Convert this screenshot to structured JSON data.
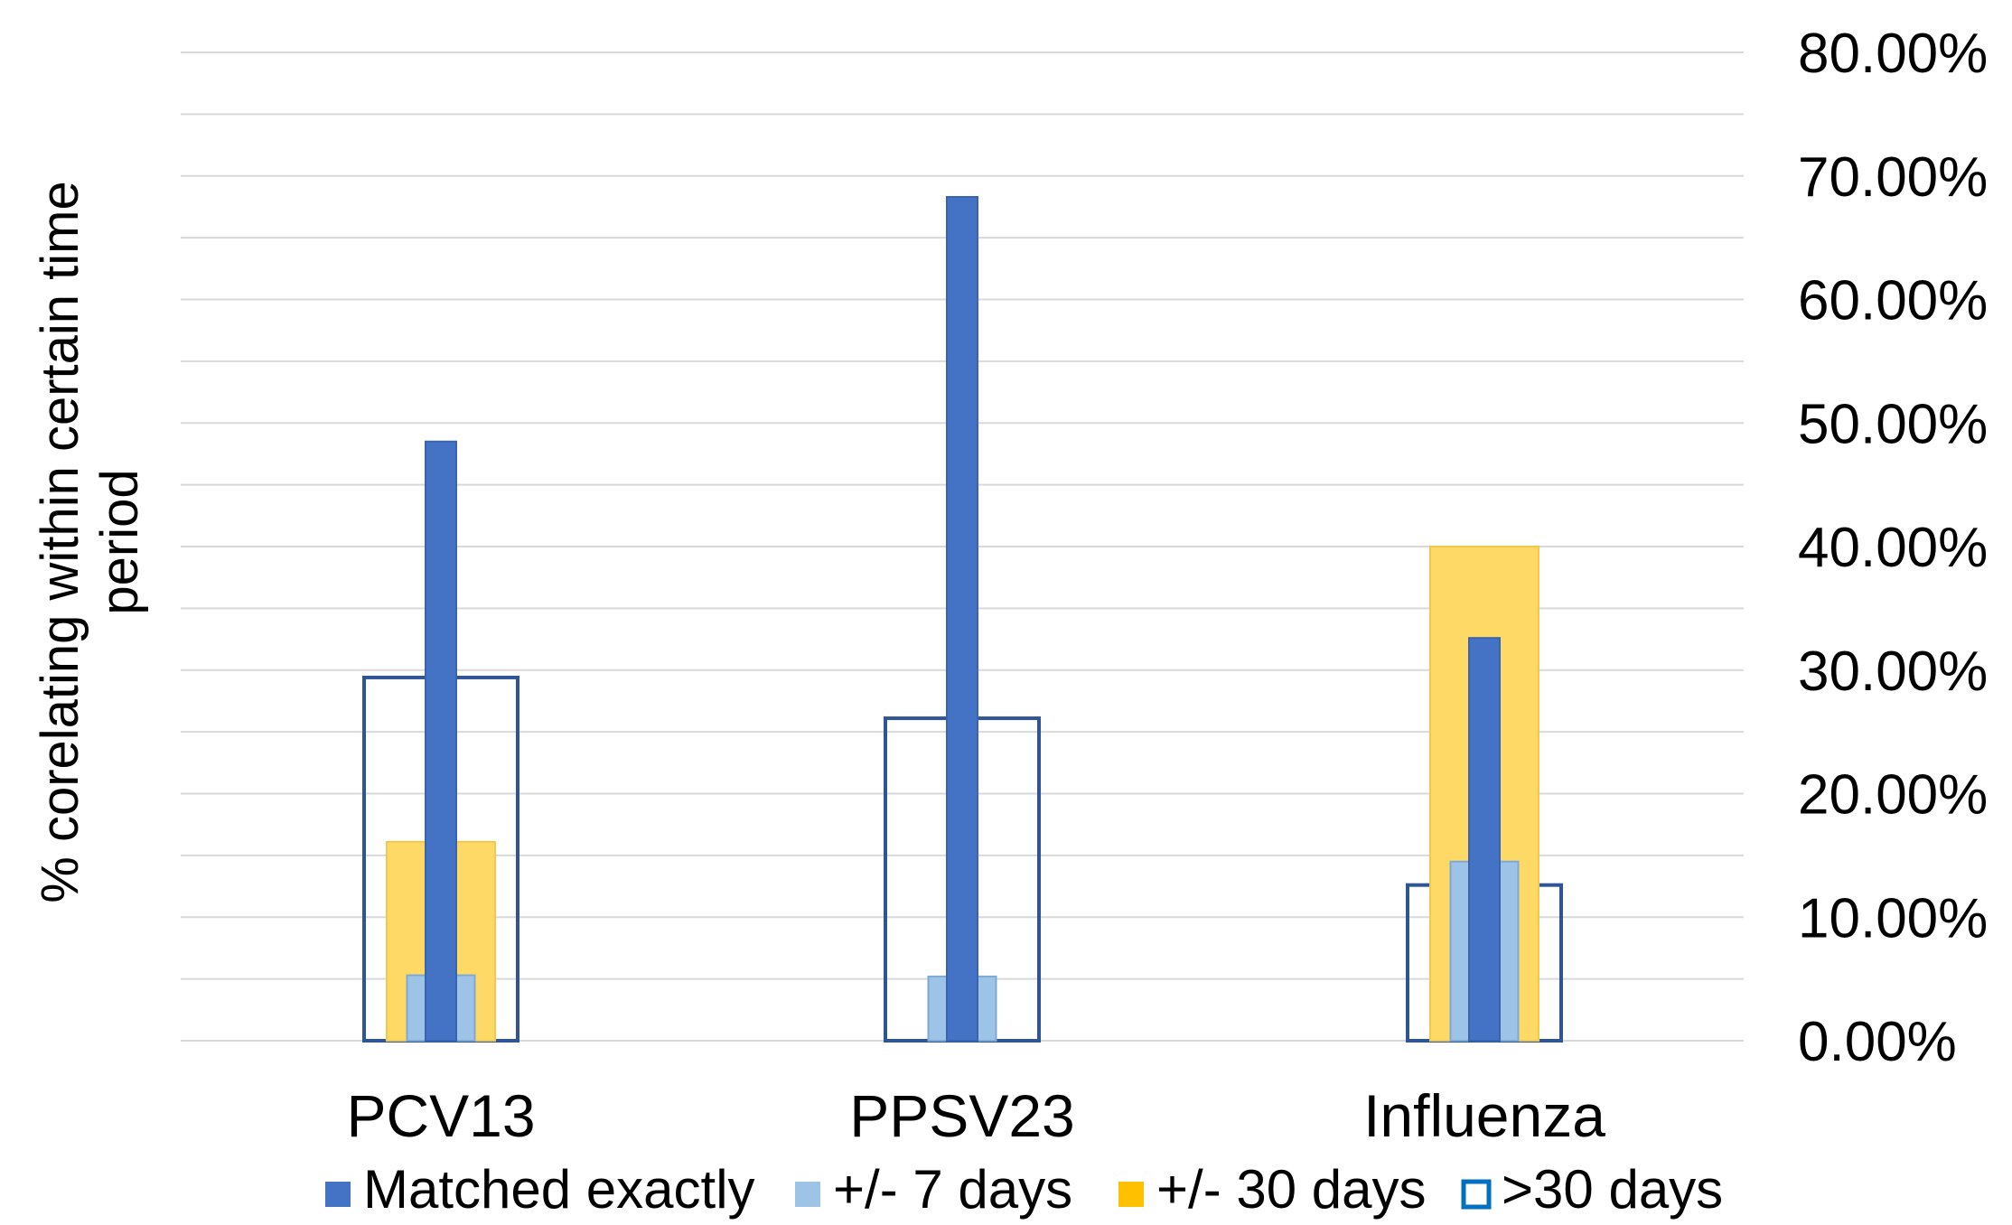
{
  "chart_data": {
    "type": "bar",
    "categories": [
      "PCV13",
      "PPSV23",
      "Influenza"
    ],
    "series": [
      {
        "name": "Matched exactly",
        "values": [
          48.5,
          68.3,
          32.6
        ],
        "color": "#4472C4",
        "style": "filled"
      },
      {
        "name": "+/- 7 days",
        "values": [
          5.3,
          5.2,
          14.5
        ],
        "color": "#9DC3E6",
        "style": "filled"
      },
      {
        "name": "+/- 30 days",
        "values": [
          16.1,
          0,
          40.0
        ],
        "color": "#FFD966",
        "style": "filled"
      },
      {
        "name": ">30 days",
        "values": [
          29.4,
          26.1,
          12.6
        ],
        "color": "#2F5597",
        "style": "outline"
      }
    ],
    "ylabel": "% corelating within certain time period",
    "xlabel": "",
    "ylim": [
      0,
      80
    ],
    "yticks": [
      {
        "value": 0,
        "label": "0.00%"
      },
      {
        "value": 10,
        "label": "10.00%"
      },
      {
        "value": 20,
        "label": "20.00%"
      },
      {
        "value": 30,
        "label": "30.00%"
      },
      {
        "value": 40,
        "label": "40.00%"
      },
      {
        "value": 50,
        "label": "50.00%"
      },
      {
        "value": 60,
        "label": "60.00%"
      },
      {
        "value": 70,
        "label": "70.00%"
      },
      {
        "value": 80,
        "label": "80.00%"
      }
    ],
    "yaxis_side": "right",
    "grid": true,
    "legend_position": "bottom",
    "legend_marker_colors": [
      "#4472C4",
      "#9DC3E6",
      "#FFC000",
      "#0070C0"
    ]
  }
}
